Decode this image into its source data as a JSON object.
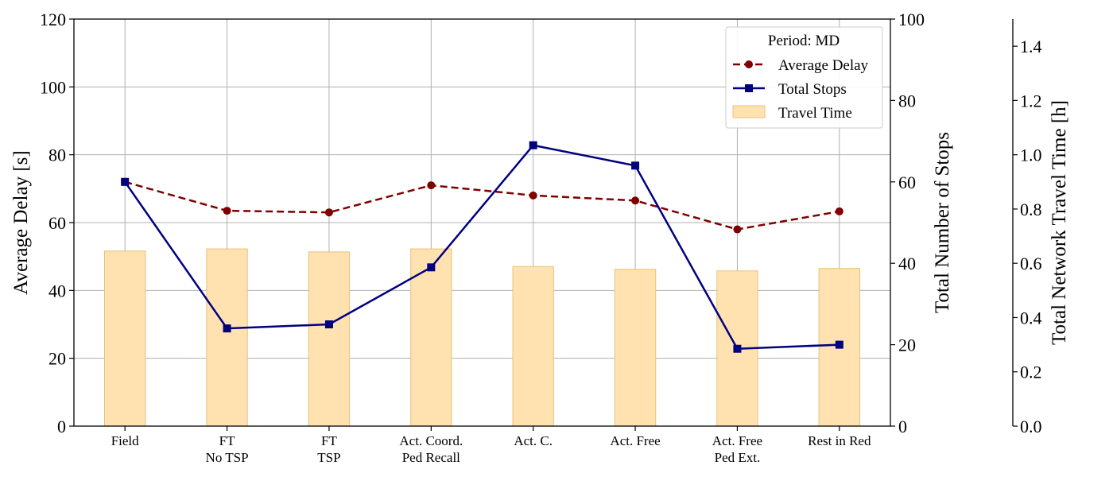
{
  "chart_data": {
    "type": "bar+line",
    "categories": [
      [
        "Field"
      ],
      [
        "FT",
        "No TSP"
      ],
      [
        "FT",
        "TSP"
      ],
      [
        "Act. Coord.",
        "Ped Recall"
      ],
      [
        "Act. C."
      ],
      [
        "Act. Free"
      ],
      [
        "Act. Free",
        "Ped Ext."
      ],
      [
        "Rest in Red"
      ]
    ],
    "axes": {
      "left": {
        "label": "Average Delay [s]",
        "ylim": [
          0,
          120
        ],
        "ticks": [
          0,
          20,
          40,
          60,
          80,
          100,
          120
        ],
        "tick_labels": [
          "0",
          "20",
          "40",
          "60",
          "80",
          "100",
          "120"
        ]
      },
      "right1": {
        "label": "Total Number of Stops",
        "ylim": [
          0,
          100
        ],
        "ticks": [
          0,
          20,
          40,
          60,
          80,
          100
        ],
        "tick_labels": [
          "0",
          "20",
          "40",
          "60",
          "80",
          "100"
        ]
      },
      "right2": {
        "label": "Total Network Travel Time [h]",
        "ylim": [
          0,
          1.5
        ],
        "ticks": [
          0,
          0.2,
          0.4,
          0.6,
          0.8,
          1.0,
          1.2,
          1.4
        ],
        "tick_labels": [
          "0.0",
          "0.2",
          "0.4",
          "0.6",
          "0.8",
          "1.0",
          "1.2",
          "1.4"
        ]
      }
    },
    "grid": true,
    "legend": {
      "title": "Period: MD",
      "placement": "top-right"
    },
    "series": [
      {
        "name": "Average Delay",
        "kind": "line",
        "style": "dashed",
        "marker": "circle",
        "color": "#800000",
        "axis": "left",
        "values": [
          72,
          63.5,
          63,
          71,
          68,
          66.5,
          58,
          63.3
        ]
      },
      {
        "name": "Total Stops",
        "kind": "line",
        "style": "solid",
        "marker": "square",
        "color": "#000080",
        "axis": "right1",
        "values": [
          60,
          24,
          25,
          39,
          69,
          64,
          19,
          20
        ]
      },
      {
        "name": "Travel Time",
        "kind": "bar",
        "color": "#ffe2b0",
        "edge": "#e8c27a",
        "axis": "right2",
        "values": [
          0.645,
          0.653,
          0.642,
          0.653,
          0.588,
          0.578,
          0.572,
          0.581
        ]
      }
    ]
  }
}
